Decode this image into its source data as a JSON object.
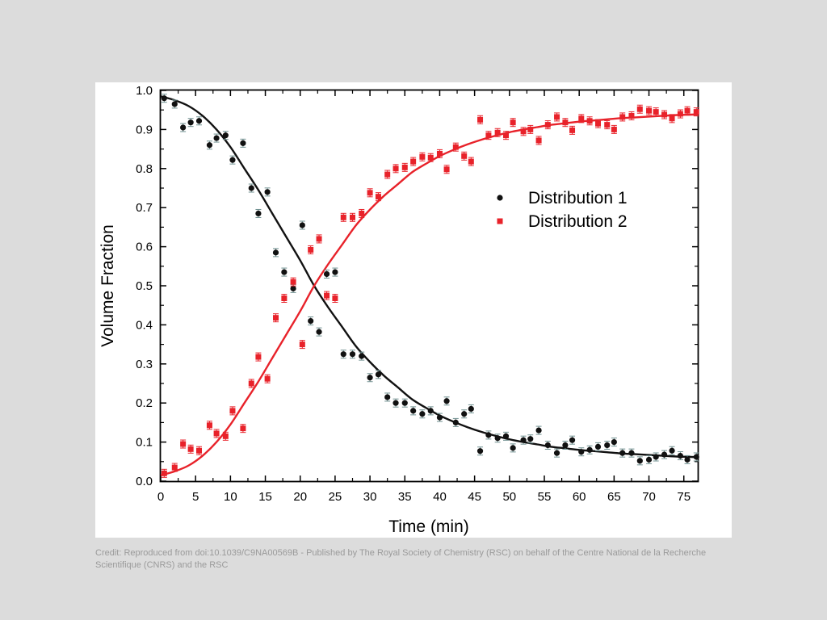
{
  "credit": "Credit: Reproduced from doi:10.1039/C9NA00569B - Published by The Royal Society of Chemistry (RSC) on behalf of the Centre National de la Recherche Scientifique (CNRS) and the RSC",
  "chart_data": {
    "type": "scatter",
    "title": "",
    "xlabel": "Time (min)",
    "ylabel": "Volume Fraction",
    "xlim": [
      0,
      77
    ],
    "ylim": [
      0,
      1.0
    ],
    "xticks": [
      0,
      5,
      10,
      15,
      20,
      25,
      30,
      35,
      40,
      45,
      50,
      55,
      60,
      65,
      70,
      75
    ],
    "yticks": [
      0.0,
      0.1,
      0.2,
      0.3,
      0.4,
      0.5,
      0.6,
      0.7,
      0.8,
      0.9,
      1.0
    ],
    "ytick_labels": [
      "0.0",
      "0.1",
      "0.2",
      "0.3",
      "0.4",
      "0.5",
      "0.6",
      "0.7",
      "0.8",
      "0.9",
      "1.0"
    ],
    "grid": false,
    "legend_position": "right-center",
    "series": [
      {
        "name": "Distribution 1",
        "color": "#111111",
        "marker": "circle",
        "error_bars": true,
        "x": [
          0.5,
          2,
          3.2,
          4.3,
          5.5,
          7,
          8,
          9.3,
          10.3,
          11.8,
          13,
          14,
          15.3,
          16.5,
          17.7,
          19,
          20.3,
          21.5,
          22.7,
          23.8,
          25,
          26.2,
          27.5,
          28.8,
          30,
          31.2,
          32.5,
          33.7,
          35,
          36.2,
          37.5,
          38.7,
          40,
          41,
          42.3,
          43.5,
          44.5,
          45.8,
          47,
          48.3,
          49.5,
          50.5,
          52,
          53,
          54.2,
          55.5,
          56.8,
          58,
          59,
          60.3,
          61.5,
          62.7,
          64,
          65,
          66.2,
          67.5,
          68.7,
          70,
          71,
          72.2,
          73.3,
          74.5,
          75.5,
          76.8
        ],
        "y": [
          0.98,
          0.965,
          0.905,
          0.918,
          0.922,
          0.86,
          0.878,
          0.885,
          0.822,
          0.865,
          0.75,
          0.685,
          0.74,
          0.585,
          0.535,
          0.493,
          0.655,
          0.41,
          0.382,
          0.53,
          0.535,
          0.325,
          0.325,
          0.32,
          0.265,
          0.273,
          0.215,
          0.2,
          0.2,
          0.18,
          0.172,
          0.18,
          0.163,
          0.205,
          0.15,
          0.172,
          0.185,
          0.077,
          0.118,
          0.11,
          0.115,
          0.085,
          0.105,
          0.108,
          0.13,
          0.092,
          0.072,
          0.092,
          0.105,
          0.075,
          0.08,
          0.088,
          0.092,
          0.1,
          0.072,
          0.072,
          0.052,
          0.055,
          0.062,
          0.068,
          0.078,
          0.065,
          0.055,
          0.062
        ],
        "fit_x": [
          0,
          2,
          4,
          6,
          8,
          10,
          12,
          14,
          16,
          18,
          20,
          22,
          24,
          26,
          28,
          30,
          32,
          34,
          36,
          38,
          40,
          42,
          44,
          46,
          48,
          50,
          52,
          54,
          56,
          58,
          60,
          62,
          64,
          66,
          68,
          70,
          72,
          74,
          76,
          77
        ],
        "fit_y": [
          0.985,
          0.975,
          0.96,
          0.935,
          0.9,
          0.855,
          0.8,
          0.745,
          0.685,
          0.625,
          0.565,
          0.5,
          0.445,
          0.395,
          0.345,
          0.305,
          0.27,
          0.24,
          0.21,
          0.188,
          0.168,
          0.152,
          0.138,
          0.126,
          0.116,
          0.107,
          0.1,
          0.094,
          0.088,
          0.084,
          0.08,
          0.077,
          0.074,
          0.071,
          0.069,
          0.067,
          0.065,
          0.063,
          0.062,
          0.061
        ]
      },
      {
        "name": "Distribution 2",
        "color": "#e8222a",
        "marker": "square",
        "error_bars": true,
        "x": [
          0.5,
          2,
          3.2,
          4.3,
          5.5,
          7,
          8,
          9.3,
          10.3,
          11.8,
          13,
          14,
          15.3,
          16.5,
          17.7,
          19,
          20.3,
          21.5,
          22.7,
          23.8,
          25,
          26.2,
          27.5,
          28.8,
          30,
          31.2,
          32.5,
          33.7,
          35,
          36.2,
          37.5,
          38.7,
          40,
          41,
          42.3,
          43.5,
          44.5,
          45.8,
          47,
          48.3,
          49.5,
          50.5,
          52,
          53,
          54.2,
          55.5,
          56.8,
          58,
          59,
          60.3,
          61.5,
          62.7,
          64,
          65,
          66.2,
          67.5,
          68.7,
          70,
          71,
          72.2,
          73.3,
          74.5,
          75.5,
          76.8
        ],
        "y": [
          0.02,
          0.035,
          0.095,
          0.082,
          0.078,
          0.143,
          0.122,
          0.115,
          0.18,
          0.135,
          0.25,
          0.318,
          0.262,
          0.418,
          0.468,
          0.51,
          0.35,
          0.592,
          0.62,
          0.475,
          0.468,
          0.675,
          0.675,
          0.685,
          0.738,
          0.728,
          0.785,
          0.8,
          0.803,
          0.818,
          0.83,
          0.828,
          0.838,
          0.798,
          0.855,
          0.832,
          0.818,
          0.925,
          0.885,
          0.892,
          0.885,
          0.918,
          0.895,
          0.9,
          0.872,
          0.912,
          0.932,
          0.918,
          0.898,
          0.928,
          0.922,
          0.915,
          0.912,
          0.9,
          0.932,
          0.935,
          0.952,
          0.948,
          0.945,
          0.938,
          0.928,
          0.94,
          0.948,
          0.945
        ],
        "fit_x": [
          0,
          2,
          4,
          6,
          8,
          10,
          12,
          14,
          16,
          18,
          20,
          22,
          24,
          26,
          28,
          30,
          32,
          34,
          36,
          38,
          40,
          42,
          44,
          46,
          48,
          50,
          52,
          54,
          56,
          58,
          60,
          62,
          64,
          66,
          68,
          70,
          72,
          74,
          76,
          77
        ],
        "fit_y": [
          0.015,
          0.025,
          0.04,
          0.065,
          0.1,
          0.145,
          0.2,
          0.255,
          0.315,
          0.375,
          0.435,
          0.5,
          0.555,
          0.605,
          0.655,
          0.695,
          0.73,
          0.76,
          0.79,
          0.812,
          0.832,
          0.848,
          0.862,
          0.874,
          0.884,
          0.893,
          0.9,
          0.906,
          0.912,
          0.916,
          0.92,
          0.923,
          0.926,
          0.929,
          0.931,
          0.933,
          0.935,
          0.937,
          0.938,
          0.939
        ]
      }
    ]
  }
}
